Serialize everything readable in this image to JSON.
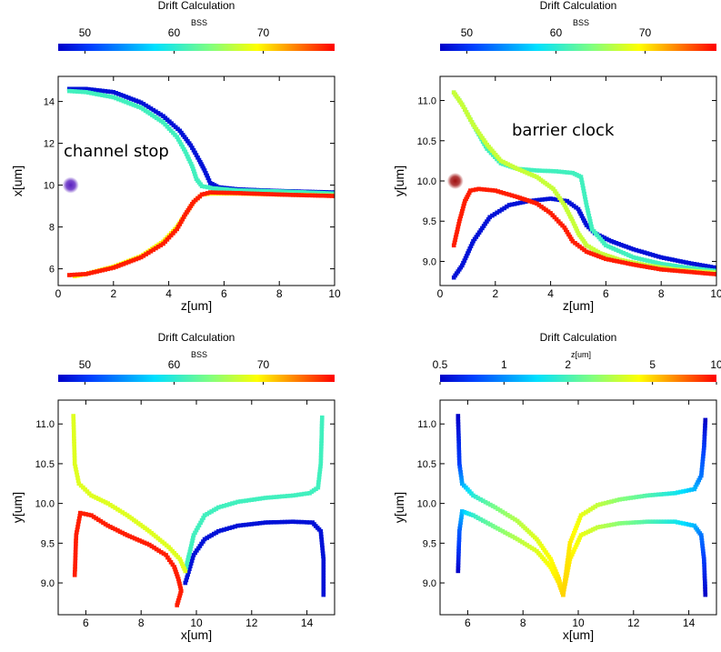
{
  "chart_data": [
    {
      "type": "scatter",
      "title": "Drift Calculation",
      "colorbar": {
        "label": "BSS",
        "ticks": [
          "50",
          "60",
          "70"
        ],
        "tick_values": [
          50,
          60,
          70
        ],
        "range": [
          47,
          78
        ],
        "scale": "linear"
      },
      "xlabel": "z[um]",
      "ylabel": "x[um]",
      "xlim": [
        0,
        10
      ],
      "ylim": [
        5.2,
        15.2
      ],
      "xticks": [
        0,
        2,
        4,
        6,
        8,
        10
      ],
      "yticks": [
        6,
        8,
        10,
        12,
        14
      ],
      "ytick_decimals": 0,
      "annotation": "channel stop",
      "marker": {
        "x": 0.45,
        "y": 10.0,
        "color": "#5a1fc0"
      },
      "series": [
        {
          "color_value": 48,
          "x": [
            0.4,
            1.0,
            2.0,
            3.0,
            3.8,
            4.4,
            4.8,
            5.1,
            5.3,
            5.5,
            5.8,
            6.5,
            8.0,
            10.0
          ],
          "y": [
            14.6,
            14.6,
            14.45,
            13.95,
            13.3,
            12.6,
            11.9,
            11.2,
            10.7,
            10.1,
            9.9,
            9.8,
            9.72,
            9.65
          ]
        },
        {
          "color_value": 61,
          "x": [
            0.4,
            1.0,
            2.0,
            3.0,
            3.8,
            4.3,
            4.6,
            4.85,
            5.0,
            5.2,
            5.6,
            6.5,
            8.0,
            10.0
          ],
          "y": [
            14.5,
            14.45,
            14.2,
            13.7,
            13.0,
            12.3,
            11.6,
            10.9,
            10.3,
            9.95,
            9.85,
            9.75,
            9.7,
            9.6
          ]
        },
        {
          "color_value": 69,
          "x": [
            0.6,
            1.0,
            2.0,
            3.0,
            3.8,
            4.3,
            4.6,
            4.9,
            5.2,
            5.5,
            6.5,
            8.0,
            10.0
          ],
          "y": [
            5.65,
            5.75,
            6.1,
            6.6,
            7.3,
            8.0,
            8.6,
            9.2,
            9.55,
            9.6,
            9.6,
            9.55,
            9.5
          ]
        },
        {
          "color_value": 77,
          "x": [
            0.4,
            1.0,
            2.0,
            3.0,
            3.8,
            4.3,
            4.6,
            4.9,
            5.2,
            5.5,
            6.5,
            8.0,
            10.0
          ],
          "y": [
            5.7,
            5.75,
            6.05,
            6.55,
            7.2,
            7.9,
            8.6,
            9.2,
            9.55,
            9.65,
            9.62,
            9.55,
            9.48
          ]
        }
      ]
    },
    {
      "type": "scatter",
      "title": "Drift Calculation",
      "colorbar": {
        "label": "BSS",
        "ticks": [
          "50",
          "60",
          "70"
        ],
        "tick_values": [
          50,
          60,
          70
        ],
        "range": [
          47,
          78
        ],
        "scale": "linear"
      },
      "xlabel": "z[um]",
      "ylabel": "y[um]",
      "xlim": [
        0,
        10
      ],
      "ylim": [
        8.7,
        11.3
      ],
      "xticks": [
        0,
        2,
        4,
        6,
        8,
        10
      ],
      "yticks": [
        9.0,
        9.5,
        10.0,
        10.5,
        11.0
      ],
      "ytick_decimals": 1,
      "annotation": "barrier clock",
      "marker": {
        "x": 0.55,
        "y": 10.0,
        "color": "#a01010"
      },
      "series": [
        {
          "color_value": 48,
          "x": [
            0.5,
            0.8,
            1.2,
            1.8,
            2.5,
            3.2,
            4.0,
            4.6,
            5.0,
            5.3,
            5.6,
            6.2,
            7.0,
            8.0,
            9.0,
            10.0
          ],
          "y": [
            8.8,
            8.95,
            9.25,
            9.55,
            9.7,
            9.75,
            9.78,
            9.75,
            9.65,
            9.45,
            9.35,
            9.25,
            9.15,
            9.05,
            8.98,
            8.92
          ]
        },
        {
          "color_value": 61,
          "x": [
            0.5,
            0.8,
            1.2,
            1.7,
            2.2,
            2.8,
            3.5,
            4.2,
            4.8,
            5.1,
            5.3,
            5.5,
            6.0,
            7.0,
            8.0,
            9.0,
            10.0
          ],
          "y": [
            11.1,
            10.95,
            10.7,
            10.4,
            10.22,
            10.15,
            10.13,
            10.12,
            10.1,
            10.05,
            9.7,
            9.4,
            9.2,
            9.05,
            8.97,
            8.92,
            8.88
          ]
        },
        {
          "color_value": 67,
          "x": [
            0.5,
            0.8,
            1.2,
            1.7,
            2.2,
            2.8,
            3.5,
            4.1,
            4.5,
            4.8,
            5.0,
            5.3,
            5.8,
            6.5,
            7.5,
            8.5,
            10.0
          ],
          "y": [
            11.1,
            10.95,
            10.7,
            10.45,
            10.25,
            10.15,
            10.05,
            9.9,
            9.7,
            9.5,
            9.35,
            9.2,
            9.1,
            9.02,
            8.95,
            8.9,
            8.86
          ]
        },
        {
          "color_value": 77,
          "x": [
            0.5,
            0.7,
            0.9,
            1.1,
            1.4,
            2.0,
            2.8,
            3.5,
            4.0,
            4.5,
            4.8,
            5.3,
            6.0,
            7.0,
            8.0,
            9.0,
            10.0
          ],
          "y": [
            9.2,
            9.5,
            9.75,
            9.88,
            9.9,
            9.88,
            9.8,
            9.72,
            9.6,
            9.42,
            9.25,
            9.12,
            9.03,
            8.96,
            8.9,
            8.87,
            8.84
          ]
        }
      ]
    },
    {
      "type": "scatter",
      "title": "Drift Calculation",
      "colorbar": {
        "label": "BSS",
        "ticks": [
          "50",
          "60",
          "70"
        ],
        "tick_values": [
          50,
          60,
          70
        ],
        "range": [
          47,
          78
        ],
        "scale": "linear"
      },
      "xlabel": "x[um]",
      "ylabel": "y[um]",
      "xlim": [
        5.0,
        15.0
      ],
      "ylim": [
        8.6,
        11.3
      ],
      "xticks": [
        6,
        8,
        10,
        12,
        14
      ],
      "yticks": [
        9.0,
        9.5,
        10.0,
        10.5,
        11.0
      ],
      "ytick_decimals": 1,
      "annotation": "",
      "marker": null,
      "series": [
        {
          "color_value": 48,
          "x": [
            9.6,
            9.9,
            10.3,
            10.8,
            11.5,
            12.5,
            13.5,
            14.2,
            14.5,
            14.6,
            14.6
          ],
          "y": [
            9.0,
            9.35,
            9.55,
            9.65,
            9.72,
            9.76,
            9.77,
            9.76,
            9.65,
            9.3,
            8.85
          ]
        },
        {
          "color_value": 61,
          "x": [
            9.6,
            9.9,
            10.3,
            10.8,
            11.5,
            12.5,
            13.5,
            14.1,
            14.4,
            14.5,
            14.55
          ],
          "y": [
            9.15,
            9.6,
            9.85,
            9.95,
            10.02,
            10.07,
            10.1,
            10.13,
            10.2,
            10.5,
            11.08
          ]
        },
        {
          "color_value": 68,
          "x": [
            5.55,
            5.6,
            5.75,
            6.2,
            6.8,
            7.5,
            8.3,
            9.0,
            9.4,
            9.6
          ],
          "y": [
            11.1,
            10.5,
            10.25,
            10.1,
            10.0,
            9.85,
            9.65,
            9.45,
            9.3,
            9.15
          ]
        },
        {
          "color_value": 77,
          "x": [
            5.6,
            5.65,
            5.8,
            6.2,
            6.8,
            7.5,
            8.3,
            8.9,
            9.2,
            9.35,
            9.45,
            9.3
          ],
          "y": [
            9.1,
            9.6,
            9.88,
            9.85,
            9.72,
            9.6,
            9.48,
            9.35,
            9.2,
            9.05,
            8.9,
            8.72
          ]
        }
      ]
    },
    {
      "type": "scatter",
      "title": "Drift Calculation",
      "colorbar": {
        "label": "z[um]",
        "ticks": [
          "0.5",
          "1",
          "2",
          "5",
          "10"
        ],
        "tick_values": [
          0.5,
          1,
          2,
          5,
          10
        ],
        "range": [
          0.5,
          10
        ],
        "scale": "log"
      },
      "xlabel": "x[um]",
      "ylabel": "y[um]",
      "xlim": [
        5.0,
        15.0
      ],
      "ylim": [
        8.6,
        11.3
      ],
      "xticks": [
        6,
        8,
        10,
        12,
        14
      ],
      "yticks": [
        9.0,
        9.5,
        10.0,
        10.5,
        11.0
      ],
      "ytick_decimals": 1,
      "annotation": "",
      "marker": null,
      "series": [
        {
          "x": [
            5.65,
            5.7,
            5.8,
            6.2,
            7.0,
            7.8,
            8.5,
            9.0,
            9.3,
            9.45
          ],
          "y": [
            11.1,
            10.5,
            10.25,
            10.1,
            9.95,
            9.78,
            9.55,
            9.3,
            9.05,
            8.85
          ],
          "z": [
            0.5,
            0.7,
            1.1,
            1.7,
            2.5,
            3.2,
            3.8,
            4.3,
            4.7,
            5.0
          ]
        },
        {
          "x": [
            5.65,
            5.7,
            5.8,
            6.2,
            7.0,
            7.8,
            8.5,
            9.0,
            9.3,
            9.45
          ],
          "y": [
            9.15,
            9.65,
            9.9,
            9.85,
            9.7,
            9.55,
            9.4,
            9.2,
            9.0,
            8.85
          ],
          "z": [
            0.5,
            0.8,
            1.2,
            1.8,
            2.5,
            3.2,
            3.8,
            4.3,
            4.7,
            5.0
          ]
        },
        {
          "x": [
            9.45,
            9.7,
            10.1,
            10.7,
            11.5,
            12.5,
            13.5,
            14.2,
            14.45,
            14.55,
            14.6
          ],
          "y": [
            8.85,
            9.3,
            9.6,
            9.7,
            9.75,
            9.77,
            9.77,
            9.72,
            9.6,
            9.3,
            8.85
          ],
          "z": [
            5.0,
            4.6,
            4.0,
            3.4,
            2.7,
            2.1,
            1.6,
            1.2,
            0.9,
            0.7,
            0.5
          ]
        },
        {
          "x": [
            9.45,
            9.7,
            10.1,
            10.7,
            11.5,
            12.5,
            13.5,
            14.2,
            14.45,
            14.55,
            14.6
          ],
          "y": [
            8.85,
            9.5,
            9.85,
            9.98,
            10.05,
            10.1,
            10.13,
            10.18,
            10.35,
            10.7,
            11.05
          ],
          "z": [
            5.0,
            4.6,
            4.0,
            3.4,
            2.7,
            2.1,
            1.6,
            1.2,
            0.9,
            0.7,
            0.5
          ]
        }
      ]
    }
  ]
}
